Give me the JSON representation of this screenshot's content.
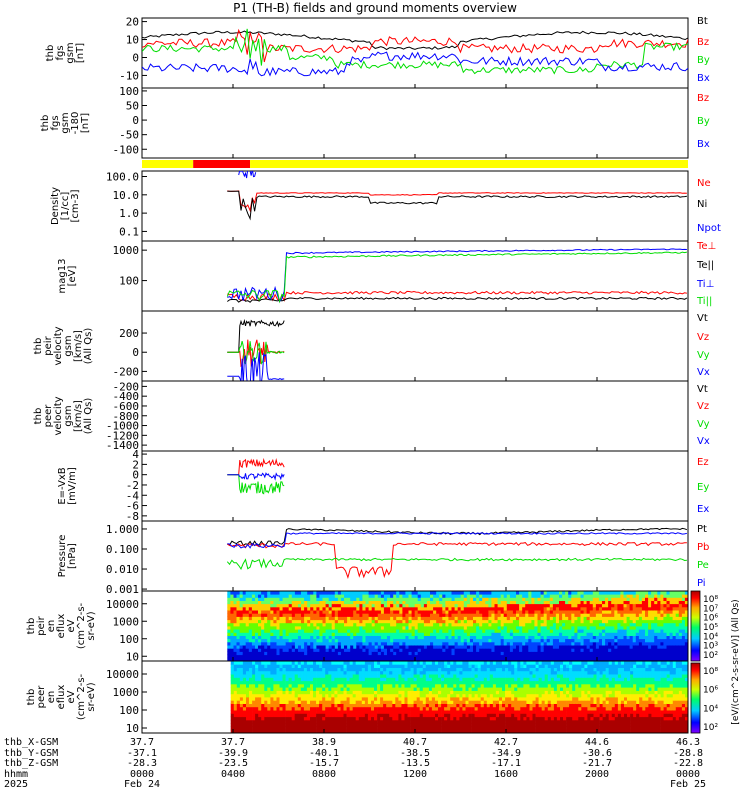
{
  "title": "P1 (TH-B) fields and ground moments overview",
  "colors": {
    "red": "#ff0000",
    "green": "#00dd00",
    "blue": "#0000ff",
    "black": "#000000",
    "yellow": "#ffff00"
  },
  "chart_data": [
    {
      "type": "line",
      "id": "fgs",
      "ylabel": [
        "thb",
        "fgs",
        "gsm",
        "[nT]"
      ],
      "yticks": [
        20,
        10,
        0,
        -10
      ],
      "ylim": [
        -17,
        22
      ],
      "series": [
        {
          "name": "Bt",
          "color": "black"
        },
        {
          "name": "Bz",
          "color": "red"
        },
        {
          "name": "By",
          "color": "green"
        },
        {
          "name": "Bx",
          "color": "blue"
        }
      ]
    },
    {
      "type": "line",
      "id": "fgs_gsm",
      "ylabel": [
        "thb",
        "fgs",
        "gsm",
        "-180",
        "[nT]"
      ],
      "yticks": [
        100,
        50,
        0,
        -50,
        -100
      ],
      "ylim": [
        -130,
        110
      ],
      "series": [
        {
          "name": "Bz",
          "color": "red"
        },
        {
          "name": "By",
          "color": "green"
        },
        {
          "name": "Bx",
          "color": "blue"
        }
      ]
    },
    {
      "type": "bar",
      "id": "mode_bar",
      "segments": [
        {
          "x0": 0,
          "x1": 4.5,
          "color": "yellow"
        },
        {
          "x0": 4.5,
          "x1": 9.5,
          "color": "red"
        },
        {
          "x0": 9.5,
          "x1": 48,
          "color": "yellow"
        }
      ]
    },
    {
      "type": "line",
      "id": "density",
      "ylabel": [
        "Density",
        "[1/cc]",
        "[cm-3]"
      ],
      "yticks": [
        "100.0",
        "10.0",
        "1.0",
        "0.1"
      ],
      "log": true,
      "ylim": [
        0.03,
        200
      ],
      "series": [
        {
          "name": "Ne",
          "color": "red"
        },
        {
          "name": "Ni",
          "color": "black"
        },
        {
          "name": "Npot",
          "color": "blue"
        }
      ]
    },
    {
      "type": "line",
      "id": "temp",
      "ylabel": [
        "mag13",
        "[eV]"
      ],
      "yticks": [
        "1000",
        "100"
      ],
      "log": true,
      "ylim": [
        10,
        2000
      ],
      "series": [
        {
          "name": "Te⊥",
          "color": "red"
        },
        {
          "name": "Te||",
          "color": "black"
        },
        {
          "name": "Ti⊥",
          "color": "blue"
        },
        {
          "name": "Ti||",
          "color": "green"
        }
      ]
    },
    {
      "type": "line",
      "id": "peir_vel",
      "ylabel": [
        "thb",
        "peir",
        "velocity",
        "gsm",
        "[km/s]",
        "(All Qs)"
      ],
      "yticks": [
        "200",
        "0",
        "-200"
      ],
      "ylim": [
        -300,
        430
      ],
      "series": [
        {
          "name": "Vt",
          "color": "black"
        },
        {
          "name": "Vz",
          "color": "red"
        },
        {
          "name": "Vy",
          "color": "green"
        },
        {
          "name": "Vx",
          "color": "blue"
        }
      ]
    },
    {
      "type": "line",
      "id": "peer_vel",
      "ylabel": [
        "thb",
        "peer",
        "velocity",
        "gsm",
        "[km/s]",
        "(All Qs)"
      ],
      "yticks": [
        "-200",
        "-400",
        "-600",
        "-800",
        "-1000",
        "-1200",
        "-1400"
      ],
      "ylim": [
        -1520,
        -90
      ],
      "series": [
        {
          "name": "Vt",
          "color": "black"
        },
        {
          "name": "Vz",
          "color": "red"
        },
        {
          "name": "Vy",
          "color": "green"
        },
        {
          "name": "Vx",
          "color": "blue"
        }
      ]
    },
    {
      "type": "line",
      "id": "efield",
      "ylabel": [
        "E=-VxB",
        "[mV/m]"
      ],
      "yticks": [
        "4",
        "2",
        "0",
        "-2",
        "-4",
        "-6",
        "-8"
      ],
      "ylim": [
        -9,
        4.6
      ],
      "series": [
        {
          "name": "Ez",
          "color": "red"
        },
        {
          "name": "Ey",
          "color": "green"
        },
        {
          "name": "Ex",
          "color": "blue"
        }
      ]
    },
    {
      "type": "line",
      "id": "pressure",
      "ylabel": [
        "Pressure",
        "[nPa]"
      ],
      "yticks": [
        "1.000",
        "0.100",
        "0.010",
        "0.001"
      ],
      "log": true,
      "ylim": [
        0.0008,
        2.5
      ],
      "series": [
        {
          "name": "Pt",
          "color": "black"
        },
        {
          "name": "Pb",
          "color": "red"
        },
        {
          "name": "Pe",
          "color": "green"
        },
        {
          "name": "Pi",
          "color": "blue"
        }
      ]
    },
    {
      "type": "heatmap",
      "id": "peir_spec",
      "ylabel": [
        "thb",
        "peir",
        "en",
        "eflux",
        "eV",
        "(cm^2-s-",
        "sr-eV)"
      ],
      "yticks": [
        "10000",
        "1000",
        "100",
        "10"
      ],
      "log": true
    },
    {
      "type": "heatmap",
      "id": "peer_spec",
      "ylabel": [
        "thb",
        "peer",
        "en",
        "eflux",
        "eV",
        "(cm^2-s-",
        "sr-eV)"
      ],
      "yticks": [
        "10000",
        "1000",
        "100",
        "10"
      ],
      "log": true
    }
  ],
  "colorbar": {
    "label": "[eV/(cm^2-s-sr-eV)] (All Qs)",
    "ticks": [
      "10⁸",
      "10⁷",
      "10⁶",
      "10⁵",
      "10⁴",
      "10³",
      "10²"
    ],
    "ticks2": [
      "10⁸",
      "10⁶",
      "10⁴",
      "10²"
    ]
  },
  "footer": {
    "labels": [
      "thb_X-GSM",
      "thb_Y-GSM",
      "thb_Z-GSM",
      "hhmm",
      "2025"
    ],
    "x_gsm": [
      "37.7",
      "37.7",
      "38.9",
      "40.7",
      "42.7",
      "44.6",
      "46.3"
    ],
    "y_gsm": [
      "-37.1",
      "-39.9",
      "-40.1",
      "-38.5",
      "-34.9",
      "-30.6",
      "-28.8"
    ],
    "z_gsm": [
      "-28.3",
      "-23.5",
      "-15.7",
      "-13.5",
      "-17.1",
      "-21.7",
      "-22.8"
    ],
    "hhmm": [
      "0000",
      "0400",
      "0800",
      "1200",
      "1600",
      "2000",
      "0000"
    ],
    "date": [
      "Feb 24",
      "",
      "",
      "",
      "",
      "",
      "Feb 25"
    ]
  }
}
